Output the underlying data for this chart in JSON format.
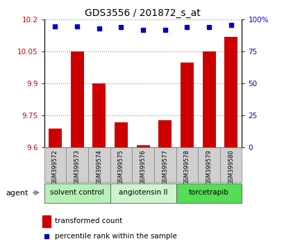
{
  "title": "GDS3556 / 201872_s_at",
  "samples": [
    "GSM399572",
    "GSM399573",
    "GSM399574",
    "GSM399575",
    "GSM399576",
    "GSM399577",
    "GSM399578",
    "GSM399579",
    "GSM399580"
  ],
  "transformed_counts": [
    9.69,
    10.05,
    9.9,
    9.72,
    9.61,
    9.73,
    10.0,
    10.05,
    10.12
  ],
  "percentile_ranks": [
    95,
    95,
    93,
    94,
    92,
    92,
    94,
    94,
    96
  ],
  "groups": [
    {
      "label": "solvent control",
      "indices": [
        0,
        1,
        2
      ],
      "color": "#b8f0b8"
    },
    {
      "label": "angiotensin II",
      "indices": [
        3,
        4,
        5
      ],
      "color": "#ccf5cc"
    },
    {
      "label": "torcetrapib",
      "indices": [
        6,
        7,
        8
      ],
      "color": "#55dd55"
    }
  ],
  "ylim_left": [
    9.6,
    10.2
  ],
  "ylim_right": [
    0,
    100
  ],
  "yticks_left": [
    9.6,
    9.75,
    9.9,
    10.05,
    10.2
  ],
  "yticks_right": [
    0,
    25,
    50,
    75,
    100
  ],
  "ytick_labels_right": [
    "0",
    "25",
    "50",
    "75",
    "100%"
  ],
  "bar_color": "#cc0000",
  "dot_color": "#0000cc",
  "bar_bottom": 9.6,
  "grid_color": "#888888",
  "bg_color": "#ffffff",
  "legend_dot_label": "percentile rank within the sample",
  "legend_bar_label": "transformed count",
  "agent_label": "agent",
  "title_color": "#000000",
  "left_tick_color": "#cc0000",
  "right_tick_color": "#0000cc",
  "sample_box_color": "#d0d0d0",
  "sample_box_edge": "#888888"
}
